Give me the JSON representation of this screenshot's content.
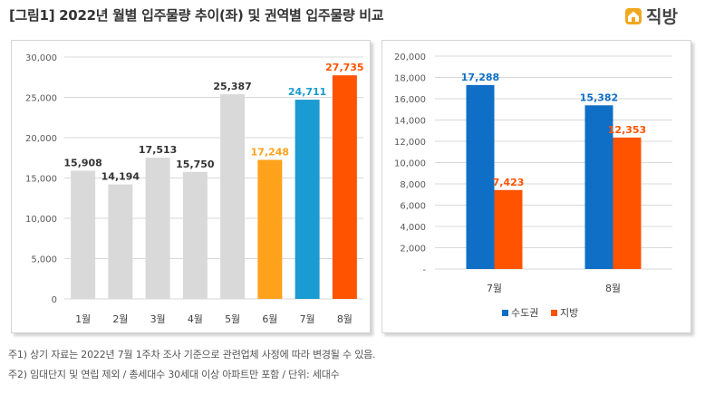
{
  "header": {
    "title": "[그림1] 2022년 월별 입주물량 추이(좌) 및 권역별 입주물량 비교",
    "logo_text": "직방",
    "logo_icon": "house-icon",
    "logo_color": "#f0a81e"
  },
  "chart_data": [
    {
      "type": "bar",
      "title": "",
      "xlabel": "",
      "ylabel": "",
      "categories": [
        "1월",
        "2월",
        "3월",
        "4월",
        "5월",
        "6월",
        "7월",
        "8월"
      ],
      "values": [
        15908,
        14194,
        17513,
        15750,
        25387,
        17248,
        24711,
        27735
      ],
      "value_labels": [
        "15,908",
        "14,194",
        "17,513",
        "15,750",
        "25,387",
        "17,248",
        "24,711",
        "27,735"
      ],
      "bar_colors": [
        "#d9d9d9",
        "#d9d9d9",
        "#d9d9d9",
        "#d9d9d9",
        "#d9d9d9",
        "#fea21c",
        "#1a9bd1",
        "#ff5300"
      ],
      "label_colors": [
        "#333333",
        "#333333",
        "#333333",
        "#333333",
        "#333333",
        "#fea21c",
        "#1a9bd1",
        "#ff5300"
      ],
      "ylim": [
        0,
        30000
      ],
      "yticks": [
        0,
        5000,
        10000,
        15000,
        20000,
        25000,
        30000
      ],
      "ytick_labels": [
        "0",
        "5,000",
        "10,000",
        "15,000",
        "20,000",
        "25,000",
        "30,000"
      ],
      "grid": true
    },
    {
      "type": "bar",
      "title": "",
      "xlabel": "",
      "ylabel": "",
      "categories": [
        "7월",
        "8월"
      ],
      "series": [
        {
          "name": "수도권",
          "color": "#0f6fc6",
          "values": [
            17288,
            15382
          ],
          "value_labels": [
            "17,288",
            "15,382"
          ]
        },
        {
          "name": "지방",
          "color": "#ff5300",
          "values": [
            7423,
            12353
          ],
          "value_labels": [
            "7,423",
            "12,353"
          ]
        }
      ],
      "ylim": [
        0,
        20000
      ],
      "yticks": [
        0,
        2000,
        4000,
        6000,
        8000,
        10000,
        12000,
        14000,
        16000,
        18000,
        20000
      ],
      "ytick_labels": [
        "-",
        "2,000",
        "4,000",
        "6,000",
        "8,000",
        "10,000",
        "12,000",
        "14,000",
        "16,000",
        "18,000",
        "20,000"
      ],
      "grid": true,
      "legend_position": "bottom"
    }
  ],
  "notes": {
    "note1": "주1) 상기 자료는 2022년 7월 1주차 조사 기준으로 관련업체 사정에 따라 변경될 수 있음.",
    "note2": "주2) 임대단지 및 연립 제외 / 총세대수 30세대 이상 아파트만 포함 / 단위: 세대수"
  }
}
